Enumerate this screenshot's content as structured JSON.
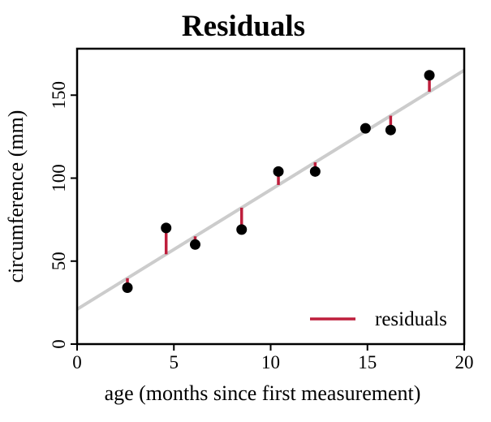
{
  "chart_data": {
    "type": "scatter",
    "title": "Residuals",
    "xlabel": "age (months since first measurement)",
    "ylabel": "circumference (mm)",
    "xlim": [
      0,
      20
    ],
    "ylim": [
      0,
      178
    ],
    "x_ticks": [
      0,
      5,
      10,
      15,
      20
    ],
    "y_ticks": [
      0,
      50,
      100,
      150
    ],
    "grid": false,
    "points": [
      {
        "x": 2.6,
        "y": 34
      },
      {
        "x": 4.6,
        "y": 70
      },
      {
        "x": 6.1,
        "y": 60
      },
      {
        "x": 8.5,
        "y": 69
      },
      {
        "x": 10.4,
        "y": 104
      },
      {
        "x": 12.3,
        "y": 104
      },
      {
        "x": 14.9,
        "y": 130
      },
      {
        "x": 16.2,
        "y": 129
      },
      {
        "x": 18.2,
        "y": 162
      }
    ],
    "fit_line": {
      "intercept": 21,
      "slope": 7.2
    },
    "residuals_shown": true,
    "legend": {
      "label": "residuals",
      "position": "bottom-right"
    },
    "colors": {
      "point": "#000000",
      "fit_line": "#cccccc",
      "residual": "#be1e3c",
      "axis": "#000000",
      "background": "#ffffff"
    }
  }
}
